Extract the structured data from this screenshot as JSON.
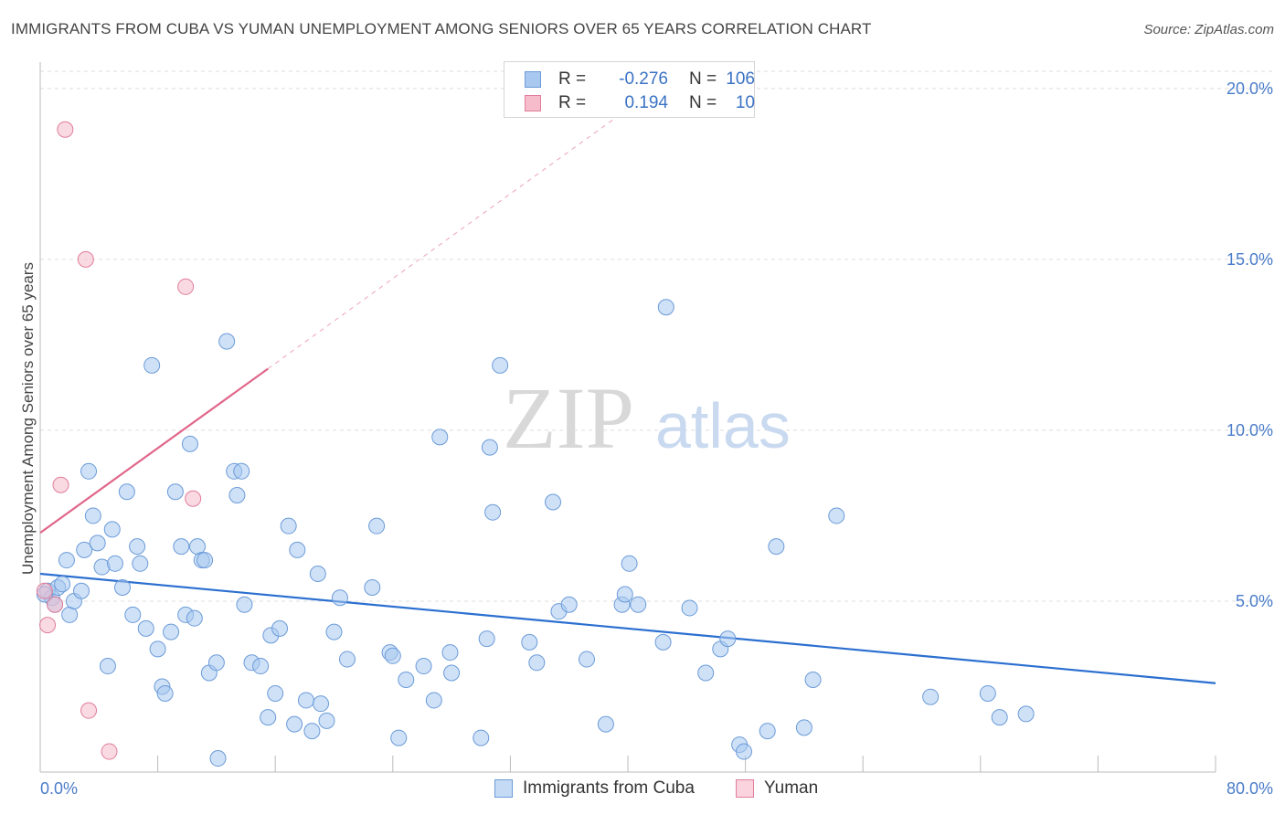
{
  "header": {
    "title": "IMMIGRANTS FROM CUBA VS YUMAN UNEMPLOYMENT AMONG SENIORS OVER 65 YEARS CORRELATION CHART",
    "source": "Source: ZipAtlas.com"
  },
  "watermark": {
    "zip": "ZIP",
    "atlas": "atlas"
  },
  "legend": {
    "rows": [
      {
        "r_label": "R =",
        "r_value": "-0.276",
        "n_label": "N =",
        "n_value": "106",
        "color": "#a8c8f0",
        "border": "#6b9bd8"
      },
      {
        "r_label": "R =",
        "r_value": "0.194",
        "n_label": "N =",
        "n_value": "10",
        "color": "#f6bccb",
        "border": "#e07d9b"
      }
    ]
  },
  "bottom_legend": {
    "items": [
      {
        "label": "Immigrants from Cuba",
        "color": "#c5daf5",
        "border": "#6b9bd8"
      },
      {
        "label": "Yuman",
        "color": "#fbd3de",
        "border": "#e07d9b"
      }
    ]
  },
  "chart_data": {
    "type": "scatter",
    "title": "IMMIGRANTS FROM CUBA VS YUMAN UNEMPLOYMENT AMONG SENIORS OVER 65 YEARS CORRELATION CHART",
    "xlabel": "",
    "ylabel": "Unemployment Among Seniors over 65 years",
    "xlim": [
      0,
      80
    ],
    "ylim": [
      0,
      20
    ],
    "x_tick_labels": [
      "0.0%",
      "80.0%"
    ],
    "y_ticks": [
      5,
      10,
      15,
      20
    ],
    "y_tick_labels": [
      "5.0%",
      "10.0%",
      "15.0%",
      "20.0%"
    ],
    "grid": true,
    "series": [
      {
        "name": "Immigrants from Cuba",
        "color": "#6b9bd8",
        "fill": "#a8c8f0",
        "trend": {
          "x": [
            0,
            80
          ],
          "y": [
            5.8,
            2.6
          ],
          "color": "#2b6fd0"
        },
        "points": [
          [
            0.5,
            5.3
          ],
          [
            0.8,
            5.1
          ],
          [
            1.0,
            4.9
          ],
          [
            1.2,
            5.4
          ],
          [
            1.5,
            5.5
          ],
          [
            1.8,
            6.2
          ],
          [
            2.0,
            4.6
          ],
          [
            2.3,
            5.0
          ],
          [
            2.8,
            5.3
          ],
          [
            3.0,
            6.5
          ],
          [
            3.3,
            8.8
          ],
          [
            3.6,
            7.5
          ],
          [
            3.9,
            6.7
          ],
          [
            4.2,
            6.0
          ],
          [
            4.6,
            3.1
          ],
          [
            4.9,
            7.1
          ],
          [
            5.1,
            6.1
          ],
          [
            5.6,
            5.4
          ],
          [
            5.9,
            8.2
          ],
          [
            6.3,
            4.6
          ],
          [
            6.6,
            6.6
          ],
          [
            6.8,
            6.1
          ],
          [
            7.2,
            4.2
          ],
          [
            7.6,
            11.9
          ],
          [
            8.0,
            3.6
          ],
          [
            8.3,
            2.5
          ],
          [
            8.5,
            2.3
          ],
          [
            8.9,
            4.1
          ],
          [
            9.2,
            8.2
          ],
          [
            9.6,
            6.6
          ],
          [
            9.9,
            4.6
          ],
          [
            10.2,
            9.6
          ],
          [
            10.5,
            4.5
          ],
          [
            10.7,
            6.6
          ],
          [
            11.0,
            6.2
          ],
          [
            11.5,
            2.9
          ],
          [
            12.0,
            3.2
          ],
          [
            12.1,
            0.4
          ],
          [
            12.7,
            12.6
          ],
          [
            13.2,
            8.8
          ],
          [
            13.4,
            8.1
          ],
          [
            13.7,
            8.8
          ],
          [
            13.9,
            4.9
          ],
          [
            14.4,
            3.2
          ],
          [
            15.0,
            3.1
          ],
          [
            15.5,
            1.6
          ],
          [
            15.7,
            4.0
          ],
          [
            16.0,
            2.3
          ],
          [
            16.3,
            4.2
          ],
          [
            16.9,
            7.2
          ],
          [
            17.3,
            1.4
          ],
          [
            17.5,
            6.5
          ],
          [
            18.1,
            2.1
          ],
          [
            18.5,
            1.2
          ],
          [
            18.9,
            5.8
          ],
          [
            19.1,
            2.0
          ],
          [
            19.5,
            1.5
          ],
          [
            20.0,
            4.1
          ],
          [
            20.4,
            5.1
          ],
          [
            20.9,
            3.3
          ],
          [
            22.6,
            5.4
          ],
          [
            22.9,
            7.2
          ],
          [
            23.8,
            3.5
          ],
          [
            24.0,
            3.4
          ],
          [
            24.4,
            1.0
          ],
          [
            24.9,
            2.7
          ],
          [
            26.1,
            3.1
          ],
          [
            26.8,
            2.1
          ],
          [
            27.2,
            9.8
          ],
          [
            27.9,
            3.5
          ],
          [
            28.0,
            2.9
          ],
          [
            30.0,
            1.0
          ],
          [
            30.4,
            3.9
          ],
          [
            30.6,
            9.5
          ],
          [
            30.8,
            7.6
          ],
          [
            31.3,
            11.9
          ],
          [
            33.3,
            3.8
          ],
          [
            33.8,
            3.2
          ],
          [
            34.9,
            7.9
          ],
          [
            35.3,
            4.7
          ],
          [
            36.0,
            4.9
          ],
          [
            37.2,
            3.3
          ],
          [
            38.5,
            1.4
          ],
          [
            39.6,
            4.9
          ],
          [
            39.8,
            5.2
          ],
          [
            40.1,
            6.1
          ],
          [
            40.7,
            4.9
          ],
          [
            42.4,
            3.8
          ],
          [
            42.6,
            13.6
          ],
          [
            44.2,
            4.8
          ],
          [
            45.3,
            2.9
          ],
          [
            46.3,
            3.6
          ],
          [
            46.8,
            3.9
          ],
          [
            47.6,
            0.8
          ],
          [
            47.9,
            0.6
          ],
          [
            49.5,
            1.2
          ],
          [
            50.1,
            6.6
          ],
          [
            52.0,
            1.3
          ],
          [
            52.6,
            2.7
          ],
          [
            54.2,
            7.5
          ],
          [
            60.6,
            2.2
          ],
          [
            64.5,
            2.3
          ],
          [
            65.3,
            1.6
          ],
          [
            67.1,
            1.7
          ],
          [
            0.3,
            5.2
          ],
          [
            11.2,
            6.2
          ]
        ]
      },
      {
        "name": "Yuman",
        "color": "#e07d9b",
        "fill": "#f6bccb",
        "trend": {
          "x": [
            0,
            15.5
          ],
          "y": [
            7.0,
            11.8
          ],
          "color": "#e0668a",
          "dashed_extension_to": [
            40,
            19.4
          ]
        },
        "points": [
          [
            0.3,
            5.3
          ],
          [
            0.5,
            4.3
          ],
          [
            1.0,
            4.9
          ],
          [
            1.4,
            8.4
          ],
          [
            1.7,
            18.8
          ],
          [
            3.1,
            15.0
          ],
          [
            3.3,
            1.8
          ],
          [
            4.7,
            0.6
          ],
          [
            9.9,
            14.2
          ],
          [
            10.4,
            8.0
          ]
        ]
      }
    ]
  }
}
